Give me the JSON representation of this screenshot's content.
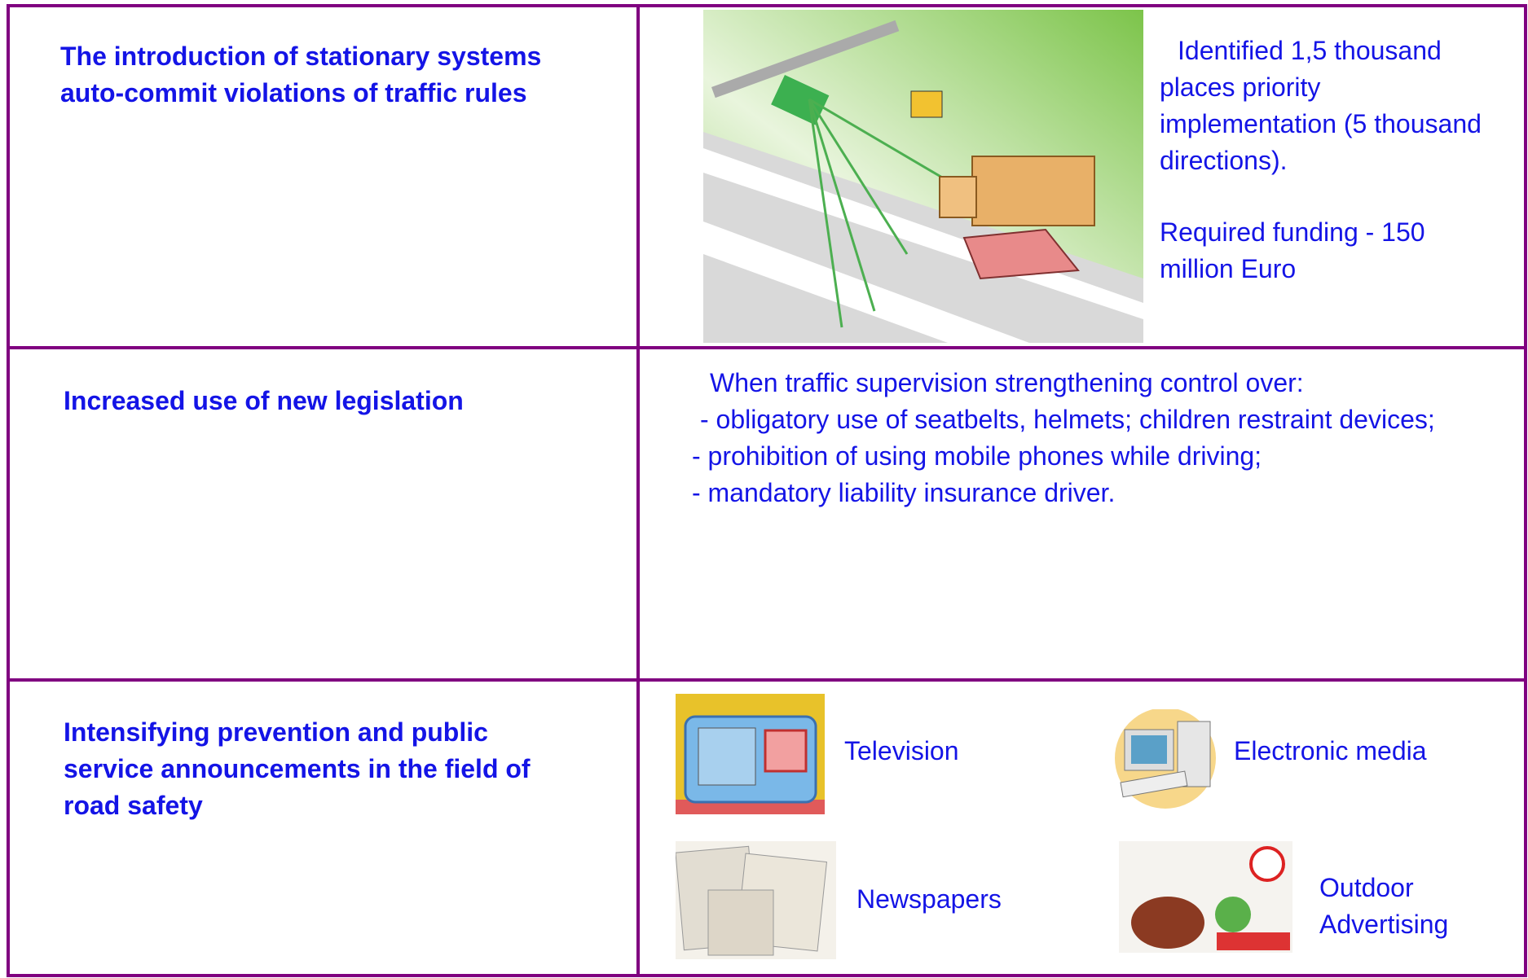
{
  "rows": [
    {
      "left": "The introduction of stationary systems auto-commit violations of traffic rules",
      "right": [
        "Identified 1,5 thousand places priority implementation (5 thousand directions).",
        "Required funding - 150 million Euro"
      ]
    },
    {
      "left": "Increased use of new legislation",
      "right": [
        "When traffic supervision strengthening control over:",
        "- obligatory use of seatbelts, helmets; children restraint devices;",
        "- prohibition of using mobile phones while driving;",
        "- mandatory liability insurance driver."
      ]
    },
    {
      "left": "Intensifying prevention and public service announcements in the field of road safety",
      "media": [
        "Television",
        "Electronic media",
        "Newspapers",
        "Outdoor Advertising"
      ]
    }
  ]
}
